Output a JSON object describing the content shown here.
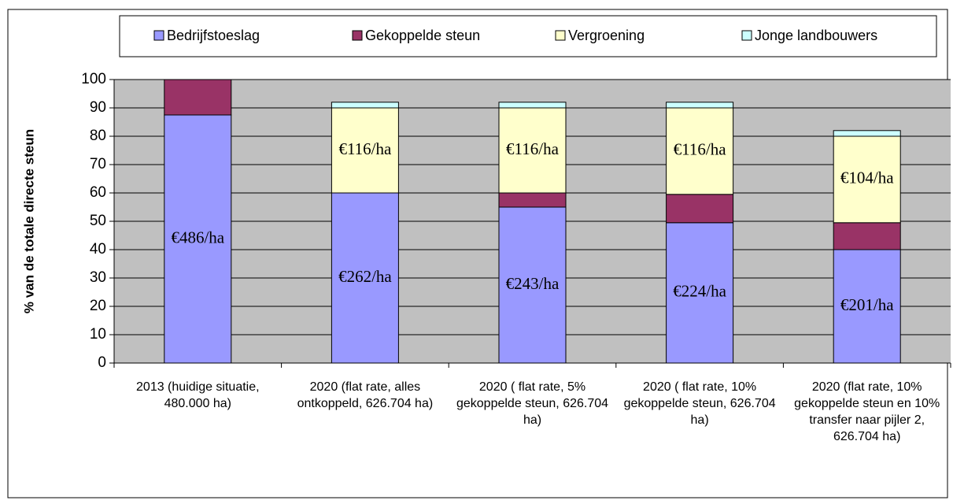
{
  "chart_data": {
    "type": "stacked_bar",
    "ylabel": "% van de totale directe steun",
    "categories": [
      "2013 (huidige situatie, 480.000 ha)",
      "2020 (flat rate, alles ontkoppeld, 626.704 ha)",
      "2020 ( flat rate, 5% gekoppelde steun, 626.704 ha)",
      "2020 ( flat rate, 10% gekoppelde steun, 626.704 ha)",
      "2020 (flat rate, 10% gekoppelde steun en 10% transfer naar pijler 2, 626.704 ha)"
    ],
    "series": [
      {
        "name": "Bedrijfstoeslag",
        "color": "#9999ff",
        "values": [
          87.5,
          60,
          55,
          49.5,
          40
        ],
        "annotations": [
          "€486/ha",
          "€262/ha",
          "€243/ha",
          "€224/ha",
          "€201/ha"
        ]
      },
      {
        "name": "Gekoppelde steun",
        "color": "#993366",
        "values": [
          12.5,
          0,
          5,
          10,
          9.5
        ],
        "annotations": [
          null,
          null,
          null,
          null,
          null
        ]
      },
      {
        "name": "Vergroening",
        "color": "#ffffcc",
        "values": [
          0,
          30,
          30,
          30.5,
          30.5
        ],
        "annotations": [
          null,
          "€116/ha",
          "€116/ha",
          "€116/ha",
          "€104/ha"
        ]
      },
      {
        "name": "Jonge landbouwers",
        "color": "#ccffff",
        "values": [
          0,
          2,
          2,
          2,
          2
        ],
        "annotations": [
          null,
          null,
          null,
          null,
          null
        ]
      }
    ],
    "ylim": [
      0,
      100
    ],
    "yticks": [
      0,
      10,
      20,
      30,
      40,
      50,
      60,
      70,
      80,
      90,
      100
    ],
    "grid": true,
    "legend": "top",
    "plot_background": "#c0c0c0"
  }
}
